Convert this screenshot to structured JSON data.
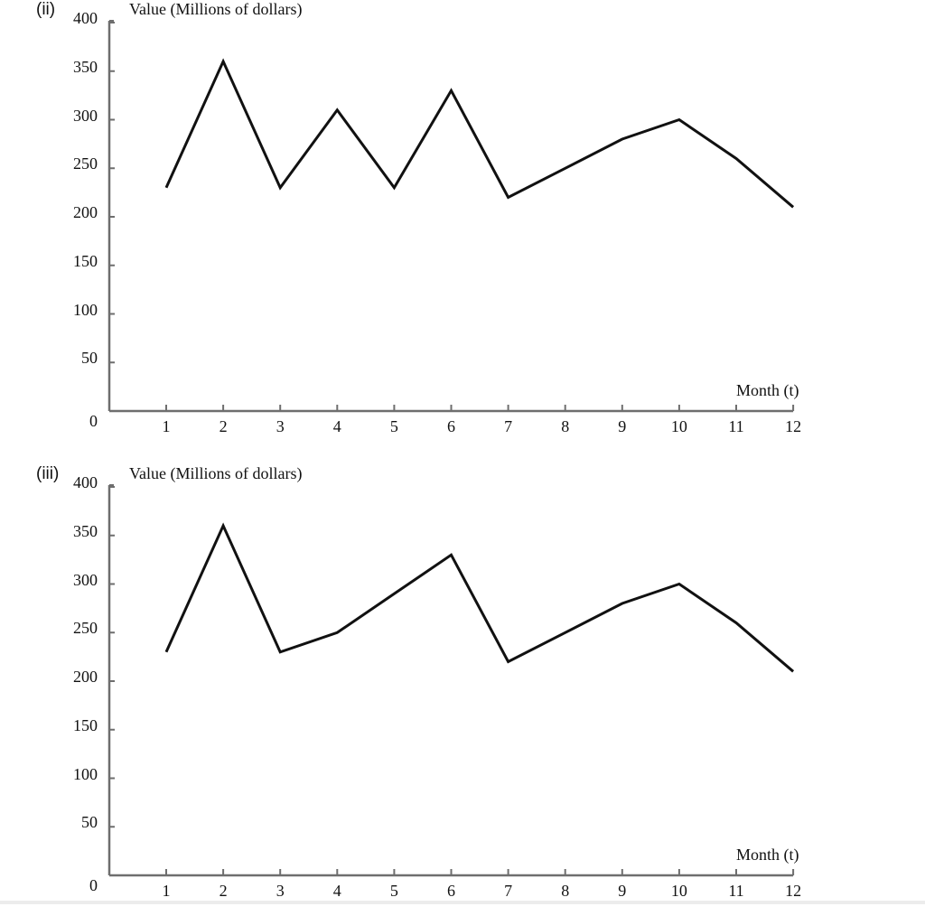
{
  "chart_data": [
    {
      "type": "line",
      "panel_label": "(ii)",
      "title": "",
      "ylabel": "Value (Millions of dollars)",
      "xlabel": "Month (t)",
      "x": [
        1,
        2,
        3,
        4,
        5,
        6,
        7,
        8,
        9,
        10,
        11,
        12
      ],
      "values": [
        230,
        360,
        230,
        310,
        230,
        330,
        220,
        250,
        280,
        300,
        260,
        210
      ],
      "ylim": [
        0,
        400
      ],
      "yticks": [
        0,
        50,
        100,
        150,
        200,
        250,
        300,
        350,
        400
      ],
      "xticks": [
        1,
        2,
        3,
        4,
        5,
        6,
        7,
        8,
        9,
        10,
        11,
        12
      ],
      "grid": false,
      "line_color": "#111111",
      "axis_color": "#6e6e6e"
    },
    {
      "type": "line",
      "panel_label": "(iii)",
      "title": "",
      "ylabel": "Value (Millions of dollars)",
      "xlabel": "Month (t)",
      "x": [
        1,
        2,
        3,
        4,
        5,
        6,
        7,
        8,
        9,
        10,
        11,
        12
      ],
      "values": [
        230,
        360,
        230,
        250,
        290,
        330,
        220,
        250,
        280,
        300,
        260,
        210
      ],
      "ylim": [
        0,
        400
      ],
      "yticks": [
        0,
        50,
        100,
        150,
        200,
        250,
        300,
        350,
        400
      ],
      "xticks": [
        1,
        2,
        3,
        4,
        5,
        6,
        7,
        8,
        9,
        10,
        11,
        12
      ],
      "grid": false,
      "line_color": "#111111",
      "axis_color": "#6e6e6e"
    }
  ]
}
